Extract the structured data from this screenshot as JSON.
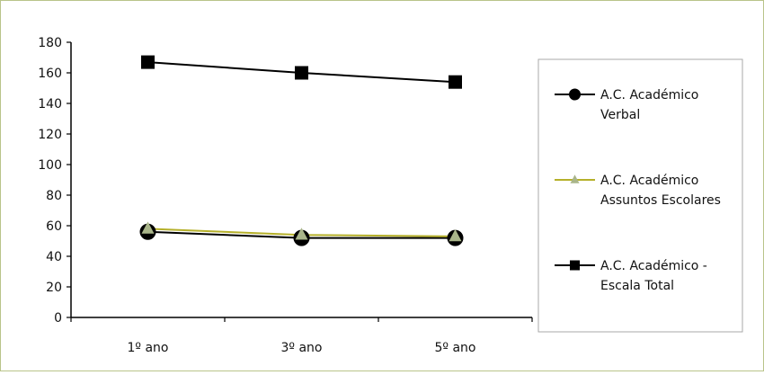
{
  "chart_data": {
    "type": "line",
    "title": "",
    "xlabel": "",
    "ylabel": "",
    "categories": [
      "1º ano",
      "3º ano",
      "5º ano"
    ],
    "y_ticks": [
      "0",
      "20",
      "40",
      "60",
      "80",
      "100",
      "120",
      "140",
      "160",
      "180"
    ],
    "ylim": [
      0,
      180
    ],
    "grid": false,
    "legend_position": "right",
    "series": [
      {
        "name": "A.C. Académico Verbal",
        "legend_lines": [
          "A.C. Académico",
          "Verbal"
        ],
        "values": [
          56,
          52,
          52
        ],
        "color": "#000000",
        "marker": "circle"
      },
      {
        "name": "A.C. Académico Assuntos Escolares",
        "legend_lines": [
          "A.C. Académico",
          "Assuntos Escolares"
        ],
        "values": [
          58,
          54,
          53
        ],
        "color": "#b5b02a",
        "marker_color": "#a9b58a",
        "marker": "triangle"
      },
      {
        "name": "A.C. Académico - Escala Total",
        "legend_lines": [
          "A.C. Académico -",
          "Escala Total"
        ],
        "values": [
          167,
          160,
          154
        ],
        "color": "#000000",
        "marker": "square"
      }
    ]
  }
}
